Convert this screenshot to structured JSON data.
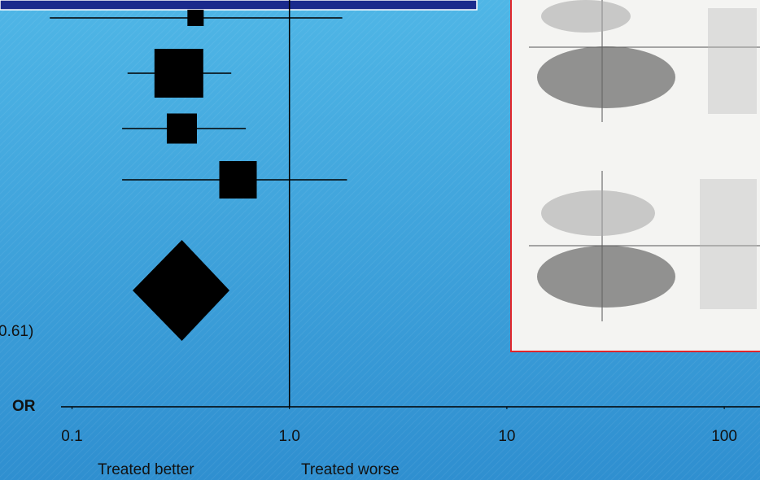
{
  "chart_data": {
    "type": "forest",
    "x_label": "OR",
    "left_note": "Treated better",
    "right_note": "Treated worse",
    "annotation": "0.61)",
    "log_x": true,
    "reference": 1,
    "xlim": [
      0.089,
      146
    ],
    "xticks": [
      0.1,
      {
        "value": 1,
        "label": "1.0"
      },
      10,
      100
    ],
    "color": "#000000",
    "studies": {
      "or": [
        0.37,
        0.31,
        0.32,
        0.58
      ],
      "lower": [
        0.079,
        0.18,
        0.17,
        0.17
      ],
      "upper": [
        1.75,
        0.54,
        0.63,
        1.84
      ],
      "weights": [
        20,
        60,
        37,
        46
      ]
    },
    "pooled": {
      "or": 0.32,
      "lower": 0.19,
      "upper": 0.53
    }
  }
}
